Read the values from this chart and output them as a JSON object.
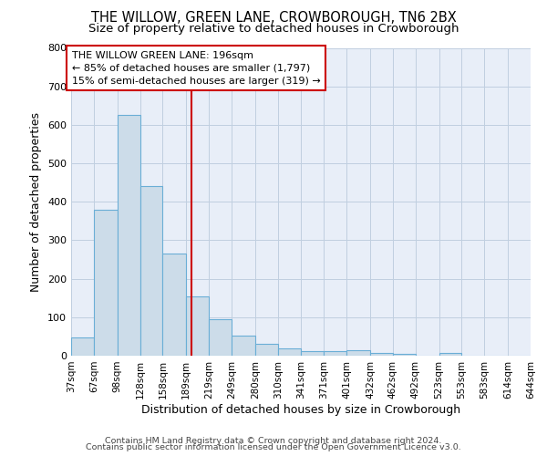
{
  "title": "THE WILLOW, GREEN LANE, CROWBOROUGH, TN6 2BX",
  "subtitle": "Size of property relative to detached houses in Crowborough",
  "xlabel": "Distribution of detached houses by size in Crowborough",
  "ylabel": "Number of detached properties",
  "bin_edges": [
    37,
    67,
    98,
    128,
    158,
    189,
    219,
    249,
    280,
    310,
    341,
    371,
    401,
    432,
    462,
    492,
    523,
    553,
    583,
    614,
    644
  ],
  "bar_heights": [
    47,
    380,
    625,
    440,
    265,
    155,
    95,
    52,
    30,
    18,
    12,
    12,
    15,
    8,
    4,
    0,
    7,
    0,
    0,
    0
  ],
  "bar_color": "#ccdce9",
  "bar_edge_color": "#6aaed6",
  "red_line_x": 196,
  "red_line_color": "#cc0000",
  "annotation_line1": "THE WILLOW GREEN LANE: 196sqm",
  "annotation_line2": "← 85% of detached houses are smaller (1,797)",
  "annotation_line3": "15% of semi-detached houses are larger (319) →",
  "annotation_box_color": "#ffffff",
  "annotation_box_edge_color": "#cc0000",
  "ylim": [
    0,
    800
  ],
  "yticks": [
    0,
    100,
    200,
    300,
    400,
    500,
    600,
    700,
    800
  ],
  "grid_color": "#c0cfe0",
  "background_color": "#e8eef8",
  "footer_text1": "Contains HM Land Registry data © Crown copyright and database right 2024.",
  "footer_text2": "Contains public sector information licensed under the Open Government Licence v3.0.",
  "title_fontsize": 10.5,
  "subtitle_fontsize": 9.5,
  "tick_label_fontsize": 7.5,
  "axis_label_fontsize": 9,
  "footer_fontsize": 6.8
}
